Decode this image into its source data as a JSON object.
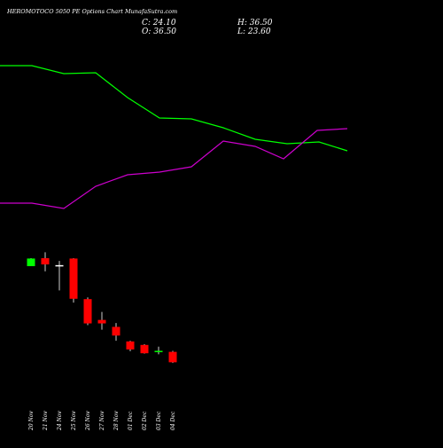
{
  "header": {
    "title": "HEROMOTOCO 5050 PE Options Chart MunafaSutra.com",
    "ohlc": {
      "close_label": "C: 24.10",
      "high_label": "H: 36.50",
      "open_label": "O: 36.50",
      "low_label": "L: 23.60"
    }
  },
  "colors": {
    "background": "#000000",
    "bull": "#00ff00",
    "bear": "#ff0000",
    "line_green": "#00ff00",
    "line_magenta": "#cc00cc",
    "text": "#ffffff"
  },
  "chart_data": {
    "type": "candlestick",
    "categories": [
      "20 Nov",
      "21 Nov",
      "24 Nov",
      "25 Nov",
      "26 Nov",
      "27 Nov",
      "28 Nov",
      "01 Dec",
      "02 Dec",
      "03 Dec",
      "04 Dec"
    ],
    "candles": [
      {
        "date": "20 Nov",
        "open": 34.0,
        "high": 36.3,
        "low": 34.0,
        "close": 36.2,
        "dir": "up"
      },
      {
        "date": "21 Nov",
        "open": 36.3,
        "high": 38.0,
        "low": 32.5,
        "close": 34.5,
        "dir": "down"
      },
      {
        "date": "24 Nov",
        "open": 34.3,
        "high": 35.5,
        "low": 27.0,
        "close": 34.3,
        "dir": "flat"
      },
      {
        "date": "25 Nov",
        "open": 36.2,
        "high": 36.3,
        "low": 23.5,
        "close": 24.6,
        "dir": "down"
      },
      {
        "date": "26 Nov",
        "open": 24.5,
        "high": 25.0,
        "low": 17.0,
        "close": 17.5,
        "dir": "down"
      },
      {
        "date": "27 Nov",
        "open": 18.5,
        "high": 20.8,
        "low": 15.7,
        "close": 17.5,
        "dir": "down"
      },
      {
        "date": "28 Nov",
        "open": 16.5,
        "high": 17.6,
        "low": 12.5,
        "close": 14.0,
        "dir": "down"
      },
      {
        "date": "01 Dec",
        "open": 12.3,
        "high": 12.5,
        "low": 9.5,
        "close": 10.0,
        "dir": "down"
      },
      {
        "date": "02 Dec",
        "open": 11.3,
        "high": 11.5,
        "low": 8.8,
        "close": 8.9,
        "dir": "down"
      },
      {
        "date": "03 Dec",
        "open": 9.3,
        "high": 10.8,
        "low": 8.6,
        "close": 9.6,
        "dir": "up"
      },
      {
        "date": "04 Dec",
        "open": 9.3,
        "high": 9.6,
        "low": 6.1,
        "close": 6.3,
        "dir": "down"
      }
    ],
    "price_range": [
      0,
      45
    ],
    "lines": [
      {
        "color": "green",
        "points": [
          [
            0,
            74
          ],
          [
            36,
            74
          ],
          [
            72,
            83
          ],
          [
            108,
            82
          ],
          [
            144,
            110
          ],
          [
            180,
            133
          ],
          [
            216,
            134
          ],
          [
            252,
            144
          ],
          [
            288,
            157
          ],
          [
            324,
            162
          ],
          [
            360,
            160
          ],
          [
            392,
            170
          ]
        ]
      },
      {
        "color": "magenta",
        "points": [
          [
            0,
            229
          ],
          [
            36,
            229
          ],
          [
            72,
            235
          ],
          [
            108,
            210
          ],
          [
            144,
            197
          ],
          [
            180,
            194
          ],
          [
            216,
            188
          ],
          [
            252,
            159
          ],
          [
            288,
            165
          ],
          [
            320,
            179
          ],
          [
            358,
            147
          ],
          [
            392,
            145
          ]
        ]
      }
    ]
  }
}
